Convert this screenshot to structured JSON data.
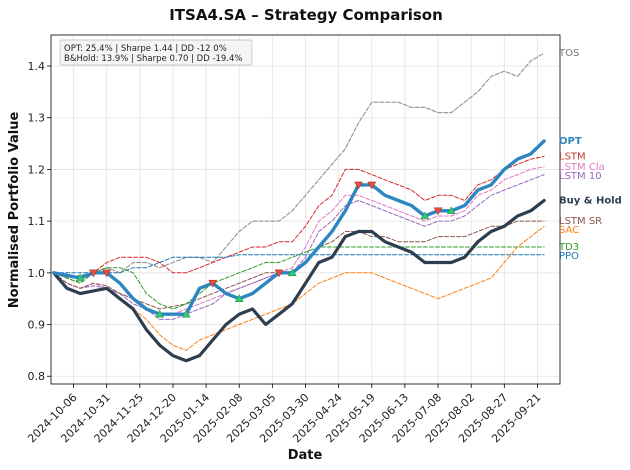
{
  "chart_data": {
    "type": "line",
    "title": "ITSA4.SA – Strategy Comparison",
    "xlabel": "Date",
    "ylabel": "Normalised Portfolio Value",
    "ylim": [
      0.785,
      1.46
    ],
    "y_ticks": [
      0.8,
      0.9,
      1.0,
      1.1,
      1.2,
      1.3,
      1.4
    ],
    "x_tick_labels": [
      "2024-10-06",
      "2024-10-31",
      "2024-11-25",
      "2024-12-20",
      "2025-01-14",
      "2025-02-08",
      "2025-03-05",
      "2025-03-30",
      "2025-04-24",
      "2025-05-19",
      "2025-06-13",
      "2025-07-08",
      "2025-08-02",
      "2025-08-27",
      "2025-09-21"
    ],
    "grid": true,
    "stats_box": {
      "position": "top-left",
      "lines": [
        "OPT: 25.4% | Sharpe 1.44 | DD -12 0%",
        "B&Hold: 13.9% | Sharpe 0.70 | DD -19.4%"
      ]
    },
    "x": [
      0,
      10,
      20,
      30,
      40,
      50,
      60,
      70,
      80,
      90,
      100,
      110,
      120,
      130,
      140,
      150,
      160,
      170,
      180,
      190,
      200,
      210,
      220,
      230,
      240,
      250,
      260,
      270,
      280,
      290,
      300,
      310,
      320,
      330,
      340,
      350,
      360,
      370
    ],
    "series": [
      {
        "name": "TOS",
        "color": "#999999",
        "style": "dashed",
        "width": 1.2,
        "values": [
          1.0,
          0.99,
          0.995,
          1.0,
          1.01,
          1.0,
          1.02,
          1.02,
          1.01,
          1.02,
          1.03,
          1.03,
          1.02,
          1.05,
          1.08,
          1.1,
          1.1,
          1.1,
          1.12,
          1.15,
          1.18,
          1.21,
          1.24,
          1.29,
          1.33,
          1.33,
          1.33,
          1.32,
          1.32,
          1.31,
          1.31,
          1.33,
          1.35,
          1.38,
          1.39,
          1.38,
          1.41,
          1.425
        ]
      },
      {
        "name": "LSTM",
        "color": "#d62728",
        "style": "dashed",
        "width": 1.0,
        "values": [
          1.0,
          0.99,
          0.98,
          1.0,
          1.02,
          1.03,
          1.03,
          1.03,
          1.02,
          1.0,
          1.0,
          1.01,
          1.02,
          1.03,
          1.04,
          1.05,
          1.05,
          1.06,
          1.06,
          1.09,
          1.13,
          1.15,
          1.2,
          1.2,
          1.19,
          1.18,
          1.17,
          1.16,
          1.14,
          1.15,
          1.15,
          1.14,
          1.17,
          1.18,
          1.2,
          1.21,
          1.22,
          1.225
        ]
      },
      {
        "name": "LSTM Cla",
        "color": "#e377c2",
        "style": "dashed",
        "width": 1.0,
        "values": [
          1.0,
          0.98,
          0.97,
          0.98,
          0.97,
          0.96,
          0.95,
          0.93,
          0.92,
          0.92,
          0.93,
          0.94,
          0.95,
          0.96,
          0.97,
          0.98,
          0.99,
          1.0,
          1.01,
          1.05,
          1.1,
          1.12,
          1.15,
          1.15,
          1.14,
          1.13,
          1.12,
          1.11,
          1.1,
          1.11,
          1.11,
          1.12,
          1.15,
          1.16,
          1.18,
          1.19,
          1.2,
          1.205
        ]
      },
      {
        "name": "LSTM 10",
        "color": "#9467bd",
        "style": "dashed",
        "width": 1.0,
        "values": [
          1.0,
          0.98,
          0.97,
          0.975,
          0.97,
          0.96,
          0.94,
          0.93,
          0.91,
          0.91,
          0.92,
          0.93,
          0.94,
          0.96,
          0.97,
          0.98,
          0.99,
          1.0,
          1.0,
          1.03,
          1.08,
          1.1,
          1.13,
          1.14,
          1.13,
          1.12,
          1.11,
          1.1,
          1.09,
          1.1,
          1.1,
          1.11,
          1.13,
          1.15,
          1.16,
          1.17,
          1.18,
          1.19
        ]
      },
      {
        "name": "LSTM SR",
        "color": "#8c564b",
        "style": "dashed",
        "width": 1.0,
        "values": [
          1.0,
          0.98,
          0.97,
          0.98,
          0.975,
          0.96,
          0.95,
          0.94,
          0.93,
          0.935,
          0.94,
          0.95,
          0.96,
          0.97,
          0.98,
          0.99,
          1.0,
          1.0,
          1.0,
          1.02,
          1.05,
          1.06,
          1.08,
          1.08,
          1.07,
          1.07,
          1.06,
          1.06,
          1.06,
          1.07,
          1.07,
          1.07,
          1.08,
          1.09,
          1.09,
          1.1,
          1.1,
          1.1
        ]
      },
      {
        "name": "PPO",
        "color": "#1f77b4",
        "style": "dashed",
        "width": 1.0,
        "values": [
          1.0,
          1.0,
          1.0,
          1.0,
          1.0,
          1.0,
          1.01,
          1.01,
          1.02,
          1.03,
          1.03,
          1.03,
          1.03,
          1.03,
          1.035,
          1.035,
          1.035,
          1.035,
          1.035,
          1.035,
          1.035,
          1.035,
          1.035,
          1.035,
          1.035,
          1.035,
          1.035,
          1.035,
          1.035,
          1.035,
          1.035,
          1.035,
          1.035,
          1.035,
          1.035,
          1.035,
          1.035,
          1.035
        ]
      },
      {
        "name": "TD3",
        "color": "#2ca02c",
        "style": "dashed",
        "width": 1.0,
        "values": [
          1.0,
          0.99,
          0.98,
          1.0,
          1.01,
          1.01,
          1.0,
          0.96,
          0.94,
          0.93,
          0.94,
          0.96,
          0.98,
          0.99,
          1.0,
          1.01,
          1.02,
          1.02,
          1.03,
          1.04,
          1.05,
          1.05,
          1.05,
          1.05,
          1.05,
          1.05,
          1.05,
          1.05,
          1.05,
          1.05,
          1.05,
          1.05,
          1.05,
          1.05,
          1.05,
          1.05,
          1.05,
          1.05
        ]
      },
      {
        "name": "SAC",
        "color": "#ff7f0e",
        "style": "dashed",
        "width": 1.0,
        "values": [
          1.0,
          0.97,
          0.96,
          0.965,
          0.97,
          0.95,
          0.93,
          0.91,
          0.88,
          0.86,
          0.85,
          0.87,
          0.88,
          0.89,
          0.9,
          0.91,
          0.92,
          0.93,
          0.94,
          0.96,
          0.98,
          0.99,
          1.0,
          1.0,
          1.0,
          0.99,
          0.98,
          0.97,
          0.96,
          0.95,
          0.96,
          0.97,
          0.98,
          0.99,
          1.02,
          1.05,
          1.07,
          1.09
        ]
      },
      {
        "name": "Buy & Hold",
        "color": "#2c3e50",
        "style": "solid",
        "width": 3.2,
        "values": [
          1.0,
          0.97,
          0.96,
          0.965,
          0.97,
          0.95,
          0.93,
          0.89,
          0.86,
          0.84,
          0.83,
          0.84,
          0.87,
          0.9,
          0.92,
          0.93,
          0.9,
          0.92,
          0.94,
          0.98,
          1.02,
          1.03,
          1.07,
          1.08,
          1.08,
          1.06,
          1.05,
          1.04,
          1.02,
          1.02,
          1.02,
          1.03,
          1.06,
          1.08,
          1.09,
          1.11,
          1.12,
          1.14
        ]
      },
      {
        "name": "OPT",
        "color": "#2e86c1",
        "style": "solid",
        "width": 3.4,
        "values": [
          1.0,
          0.995,
          0.99,
          1.0,
          1.0,
          0.98,
          0.95,
          0.93,
          0.92,
          0.92,
          0.92,
          0.97,
          0.98,
          0.96,
          0.95,
          0.96,
          0.98,
          1.0,
          1.0,
          1.02,
          1.05,
          1.08,
          1.12,
          1.17,
          1.17,
          1.15,
          1.14,
          1.13,
          1.11,
          1.12,
          1.12,
          1.13,
          1.16,
          1.17,
          1.2,
          1.22,
          1.23,
          1.255
        ]
      }
    ],
    "label_order": [
      "TOS",
      "OPT",
      "LSTM",
      "LSTM Cla",
      "LSTM 10",
      "Buy & Hold",
      "LSTM SR",
      "SAC",
      "TD3",
      "PPO"
    ],
    "label_colors": {
      "TOS": "#777777",
      "OPT": "#2e86c1",
      "LSTM": "#c0392b",
      "LSTM Cla": "#e377c2",
      "LSTM 10": "#9467bd",
      "Buy & Hold": "#2c3e50",
      "LSTM SR": "#8c564b",
      "SAC": "#ff7f0e",
      "TD3": "#2ca02c",
      "PPO": "#1f77b4"
    },
    "label_bold": {
      "OPT": true,
      "Buy & Hold": true
    }
  }
}
